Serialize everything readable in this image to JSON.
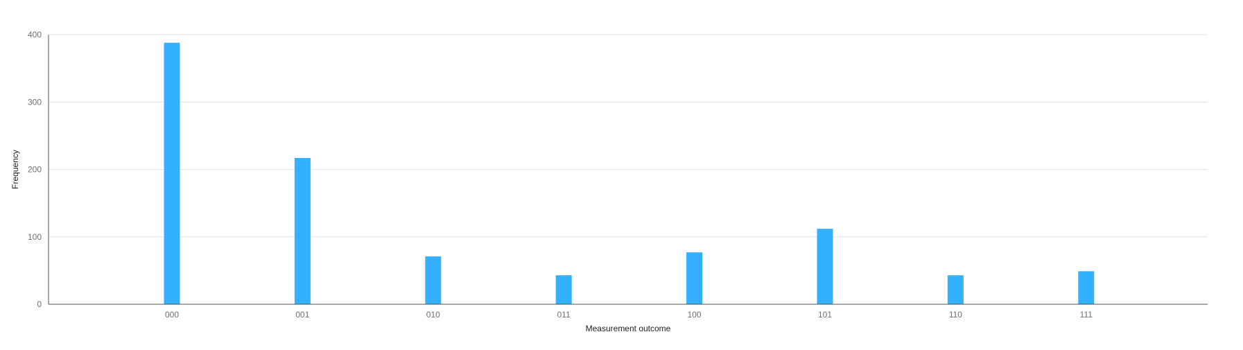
{
  "chart_data": {
    "type": "bar",
    "categories": [
      "000",
      "001",
      "010",
      "011",
      "100",
      "101",
      "110",
      "111"
    ],
    "series": [
      {
        "values": [
          388,
          217,
          71,
          43,
          77,
          112,
          43,
          49
        ]
      }
    ],
    "xlabel": "Measurement outcome",
    "ylabel": "Frequency",
    "ylim": [
      0,
      400
    ],
    "yticks": [
      0,
      100,
      200,
      300,
      400
    ],
    "grid": true,
    "bar_color": "#33b1ff",
    "grid_color": "#e0e0e0",
    "axis_color": "#525252"
  }
}
